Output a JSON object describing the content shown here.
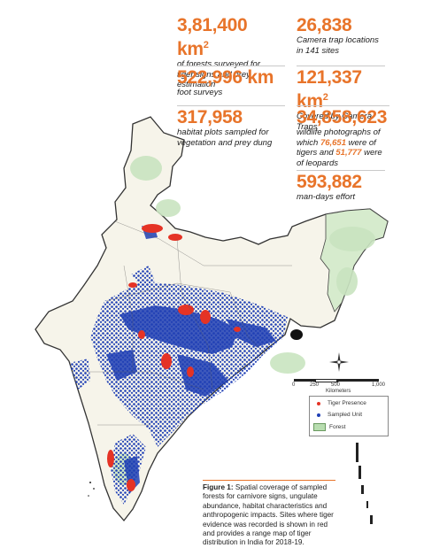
{
  "stats": [
    {
      "value": "3,81,400 km",
      "sup": "2",
      "desc": "of forests surveyed for tiger signs and prey estimation"
    },
    {
      "value": "26,838",
      "sup": "",
      "desc": "Camera trap locations in 141 sites"
    },
    {
      "value": "522,996 km",
      "sup": "",
      "desc": "foot surveys"
    },
    {
      "value": "121,337 km",
      "sup": "2",
      "desc": "Covered by Camera Traps"
    },
    {
      "value": "317,958",
      "sup": "",
      "desc": "habitat plots sampled for vegetation and prey dung"
    },
    {
      "value": "34,858,623",
      "sup": "",
      "desc_parts": [
        "wildlife photographs of which ",
        "76,651",
        " were of tigers and ",
        "51,777",
        " were of leopards"
      ]
    },
    {
      "value": "593,882",
      "sup": "",
      "desc": "man-days effort"
    }
  ],
  "legend": {
    "tiger_presence": "Tiger Presence",
    "sampled_unit": "Sampled Unit",
    "forest": "Forest",
    "colors": {
      "tiger": "#e53325",
      "sampled": "#1f3fb5",
      "forest": "#b8ddb0"
    }
  },
  "scale": {
    "labels": [
      "0",
      "250",
      "500",
      "1,000"
    ],
    "unit": "Kilometers"
  },
  "caption": {
    "bold": "Figure 1:",
    "text": " Spatial coverage of sampled forests for carnivore signs, ungulate abundance, habitat characteristics and anthropogenic impacts. Sites where tiger evidence was recorded is shown in red and provides a range map of tiger distribution in India for 2018-19."
  },
  "compass_icon": "compass-rose-icon"
}
